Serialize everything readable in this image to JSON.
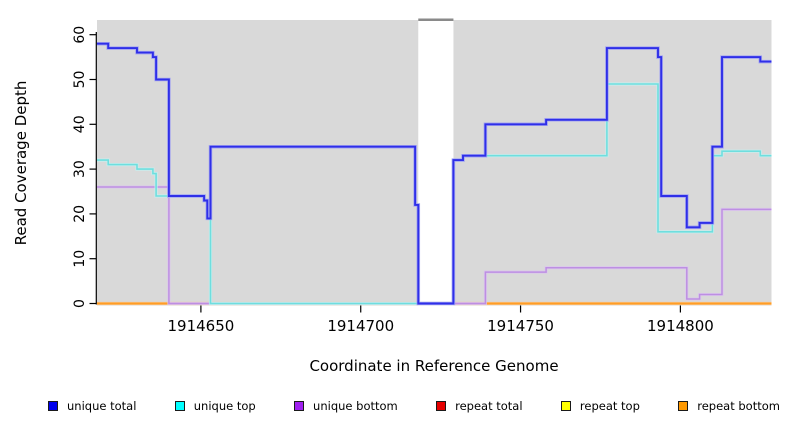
{
  "figure": {
    "background": "#ffffff",
    "plot_background": "#d9d9d9",
    "axis_color": "#000000",
    "gap_region": {
      "start": 1914718,
      "end": 1914729,
      "fill": "#ffffff",
      "top_marker_color": "#8a8a8a"
    }
  },
  "chart_data": {
    "type": "line",
    "subtype": "step-after",
    "title": "",
    "xlabel": "Coordinate in Reference Genome",
    "ylabel": "Read Coverage Depth",
    "x_domain": [
      1914617.5,
      1914828.5
    ],
    "ylim": [
      0,
      60
    ],
    "x_ticks": [
      1914650,
      1914700,
      1914750,
      1914800
    ],
    "y_ticks": [
      0,
      10,
      20,
      30,
      40,
      50,
      60
    ],
    "grid": false,
    "legend_position": "bottom",
    "series": [
      {
        "name": "repeat total",
        "color": "#dd0000",
        "halo": "#dd0000",
        "width": 1.4,
        "points": [
          [
            1914617.5,
            0
          ],
          [
            1914828.5,
            0
          ]
        ]
      },
      {
        "name": "repeat top",
        "color": "#ffff00",
        "halo": "#ffff00",
        "width": 1.4,
        "points": [
          [
            1914617.5,
            0
          ],
          [
            1914828.5,
            0
          ]
        ]
      },
      {
        "name": "repeat bottom",
        "color": "#ff9d26",
        "halo": "#ffc480",
        "width": 1.6,
        "points": [
          [
            1914617.5,
            0
          ],
          [
            1914828.5,
            0
          ]
        ]
      },
      {
        "name": "unique bottom",
        "color": "#bd8fe2",
        "halo": "#dcc4ef",
        "width": 1.5,
        "points": [
          [
            1914617.5,
            26
          ],
          [
            1914640,
            0
          ],
          [
            1914739,
            7
          ],
          [
            1914758,
            8
          ],
          [
            1914802,
            1
          ],
          [
            1914806,
            2
          ],
          [
            1914813,
            21
          ],
          [
            1914828.5,
            21
          ]
        ]
      },
      {
        "name": "unique top",
        "color": "#6fdede",
        "halo": "#c4f0f0",
        "width": 1.6,
        "points": [
          [
            1914617.5,
            32
          ],
          [
            1914621,
            31
          ],
          [
            1914630,
            30
          ],
          [
            1914635,
            29
          ],
          [
            1914636,
            24
          ],
          [
            1914651,
            23
          ],
          [
            1914652,
            19
          ],
          [
            1914653,
            0
          ],
          [
            1914729,
            32
          ],
          [
            1914732,
            33
          ],
          [
            1914777,
            49
          ],
          [
            1914793,
            16
          ],
          [
            1914810,
            33
          ],
          [
            1914813,
            34
          ],
          [
            1914825,
            33
          ],
          [
            1914828.5,
            33
          ]
        ]
      },
      {
        "name": "unique total",
        "color": "#2f2fe8",
        "halo": "#9a9af4",
        "width": 1.9,
        "points": [
          [
            1914617.5,
            58
          ],
          [
            1914621,
            57
          ],
          [
            1914630,
            56
          ],
          [
            1914635,
            55
          ],
          [
            1914636,
            50
          ],
          [
            1914640,
            24
          ],
          [
            1914651,
            23
          ],
          [
            1914652,
            19
          ],
          [
            1914653,
            35
          ],
          [
            1914717,
            22
          ],
          [
            1914718,
            0
          ],
          [
            1914729,
            32
          ],
          [
            1914732,
            33
          ],
          [
            1914739,
            40
          ],
          [
            1914758,
            41
          ],
          [
            1914777,
            57
          ],
          [
            1914793,
            55
          ],
          [
            1914794,
            24
          ],
          [
            1914802,
            17
          ],
          [
            1914806,
            18
          ],
          [
            1914810,
            35
          ],
          [
            1914813,
            55
          ],
          [
            1914825,
            54
          ],
          [
            1914828.5,
            54
          ]
        ]
      }
    ],
    "baseline_segments": [
      {
        "from": 1914617.5,
        "to": 1914640,
        "color": "#ff9d26",
        "represents": "repeat bottom at 0"
      },
      {
        "from": 1914640,
        "to": 1914653,
        "color": "#e272b2",
        "represents": "unique bottom at 0 over repeat lines"
      },
      {
        "from": 1914653,
        "to": 1914718,
        "color": "#92d492",
        "represents": "unique top at 0 over repeat lines"
      },
      {
        "from": 1914729,
        "to": 1914739,
        "color": "#e272b2",
        "represents": "unique bottom at 0 over repeat lines"
      },
      {
        "from": 1914739,
        "to": 1914828.5,
        "color": "#ff9d26",
        "represents": "repeat bottom at 0"
      }
    ]
  },
  "legend": {
    "items": [
      {
        "label": "unique total",
        "color": "#0000ee"
      },
      {
        "label": "unique top",
        "color": "#00ffff"
      },
      {
        "label": "unique bottom",
        "color": "#a020f0"
      },
      {
        "label": "repeat total",
        "color": "#e60000"
      },
      {
        "label": "repeat top",
        "color": "#ffff00"
      },
      {
        "label": "repeat bottom",
        "color": "#ff9900"
      }
    ]
  }
}
